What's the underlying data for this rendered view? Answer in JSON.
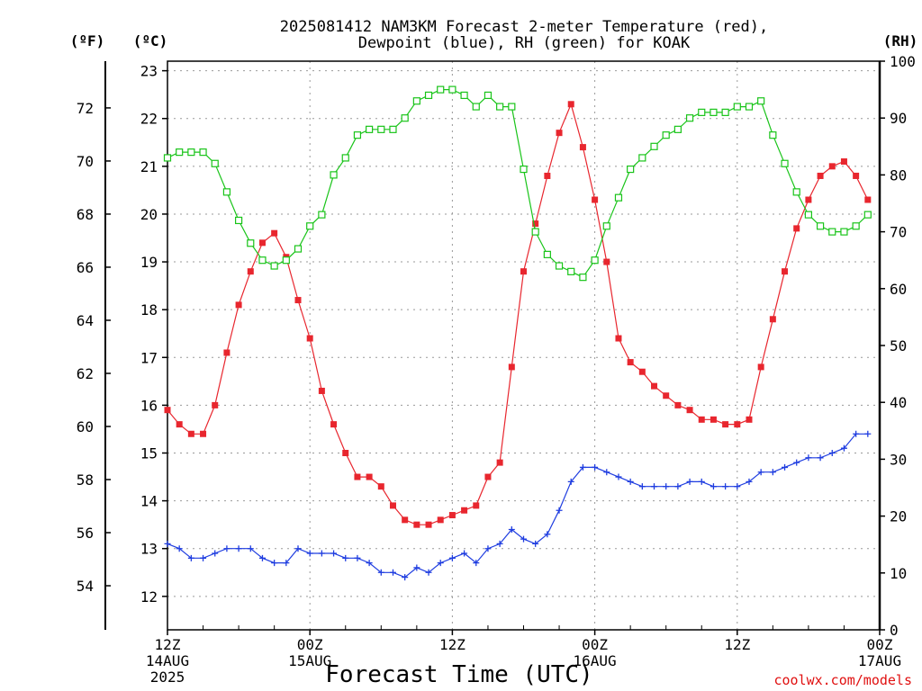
{
  "chart_data": {
    "type": "line",
    "title_line1": "2025081412 NAM3KM Forecast 2-meter Temperature (red),",
    "title_line2": "Dewpoint (blue), RH (green) for KOAK",
    "xlabel": "Forecast Time (UTC)",
    "credit": "coolwx.com/models",
    "units": {
      "fahrenheit": "(ºF)",
      "celsius": "(ºC)",
      "rh": "(RH)"
    },
    "x_ticks": [
      {
        "hour": 0,
        "line1": "12Z",
        "line2": "14AUG",
        "line3": "2025"
      },
      {
        "hour": 12,
        "line1": "00Z",
        "line2": "15AUG",
        "line3": ""
      },
      {
        "hour": 24,
        "line1": "12Z",
        "line2": "",
        "line3": ""
      },
      {
        "hour": 36,
        "line1": "00Z",
        "line2": "16AUG",
        "line3": ""
      },
      {
        "hour": 48,
        "line1": "12Z",
        "line2": "",
        "line3": ""
      },
      {
        "hour": 60,
        "line1": "00Z",
        "line2": "17AUG",
        "line3": ""
      }
    ],
    "x_range_hours": [
      0,
      60
    ],
    "celsius_axis": {
      "range": [
        11.3,
        23.2
      ],
      "ticks": [
        12,
        13,
        14,
        15,
        16,
        17,
        18,
        19,
        20,
        21,
        22,
        23
      ]
    },
    "fahrenheit_axis": {
      "ticks": [
        54,
        56,
        58,
        60,
        62,
        64,
        66,
        68,
        70,
        72
      ]
    },
    "rh_axis": {
      "range": [
        0,
        100
      ],
      "ticks": [
        0,
        10,
        20,
        30,
        40,
        50,
        60,
        70,
        80,
        90,
        100
      ]
    },
    "colors": {
      "temperature": "#e8262e",
      "dewpoint": "#1f3de0",
      "rh": "#19c419"
    },
    "series": [
      {
        "name": "Temperature",
        "axis": "celsius",
        "values": [
          15.9,
          15.6,
          15.4,
          15.4,
          16.0,
          17.1,
          18.1,
          18.8,
          19.4,
          19.6,
          19.1,
          18.2,
          17.4,
          16.3,
          15.6,
          15.0,
          14.5,
          14.5,
          14.3,
          13.9,
          13.6,
          13.5,
          13.5,
          13.6,
          13.7,
          13.8,
          13.9,
          14.5,
          14.8,
          16.8,
          18.8,
          19.8,
          20.8,
          21.7,
          22.3,
          21.4,
          20.3,
          19.0,
          17.4,
          16.9,
          16.7,
          16.4,
          16.2,
          16.0,
          15.9,
          15.7,
          15.7,
          15.6,
          15.6,
          15.7,
          16.8,
          17.8,
          18.8,
          19.7,
          20.3,
          20.8,
          21.0,
          21.1,
          20.8,
          20.3
        ]
      },
      {
        "name": "Dewpoint",
        "axis": "celsius",
        "values": [
          13.1,
          13.0,
          12.8,
          12.8,
          12.9,
          13.0,
          13.0,
          13.0,
          12.8,
          12.7,
          12.7,
          13.0,
          12.9,
          12.9,
          12.9,
          12.8,
          12.8,
          12.7,
          12.5,
          12.5,
          12.4,
          12.6,
          12.5,
          12.7,
          12.8,
          12.9,
          12.7,
          13.0,
          13.1,
          13.4,
          13.2,
          13.1,
          13.3,
          13.8,
          14.4,
          14.7,
          14.7,
          14.6,
          14.5,
          14.4,
          14.3,
          14.3,
          14.3,
          14.3,
          14.4,
          14.4,
          14.3,
          14.3,
          14.3,
          14.4,
          14.6,
          14.6,
          14.7,
          14.8,
          14.9,
          14.9,
          15.0,
          15.1,
          15.4,
          15.4
        ]
      },
      {
        "name": "RH",
        "axis": "rh",
        "values": [
          83,
          84,
          84,
          84,
          82,
          77,
          72,
          68,
          65,
          64,
          65,
          67,
          71,
          73,
          80,
          83,
          87,
          88,
          88,
          88,
          90,
          93,
          94,
          95,
          95,
          94,
          92,
          94,
          92,
          92,
          81,
          70,
          66,
          64,
          63,
          62,
          65,
          71,
          76,
          81,
          83,
          85,
          87,
          88,
          90,
          91,
          91,
          91,
          92,
          92,
          93,
          87,
          82,
          77,
          73,
          71,
          70,
          70,
          71,
          73
        ]
      }
    ]
  }
}
